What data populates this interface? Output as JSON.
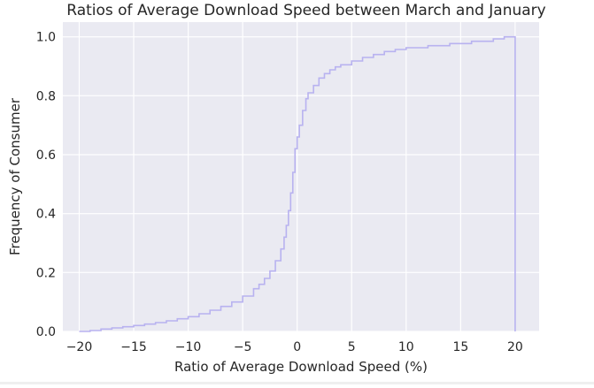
{
  "chart_data": {
    "type": "line",
    "subtype": "step-cdf",
    "title": "Ratios of Average Download Speed between March and January",
    "xlabel": "Ratio of Average Download Speed (%)",
    "ylabel": "Frequency of Consumer",
    "xlim": [
      -21.5,
      22.2
    ],
    "ylim": [
      0,
      1.05
    ],
    "xticks": [
      -20,
      -15,
      -10,
      -5,
      0,
      5,
      10,
      15,
      20
    ],
    "xtick_labels": [
      "−20",
      "−15",
      "−10",
      "−5",
      "0",
      "5",
      "10",
      "15",
      "20"
    ],
    "yticks": [
      0.0,
      0.2,
      0.4,
      0.6,
      0.8,
      1.0
    ],
    "ytick_labels": [
      "0.0",
      "0.2",
      "0.4",
      "0.6",
      "0.8",
      "1.0"
    ],
    "grid": true,
    "colors": {
      "plot_background": "#eaeaf2",
      "grid": "#ffffff",
      "line": "#b8b2f0"
    },
    "series": [
      {
        "x": [
          -20,
          -19,
          -18,
          -17,
          -16,
          -15,
          -14,
          -13,
          -12,
          -11,
          -10,
          -9,
          -8,
          -7,
          -6,
          -5,
          -4,
          -3.5,
          -3,
          -2.5,
          -2,
          -1.5,
          -1.2,
          -1,
          -0.8,
          -0.6,
          -0.4,
          -0.2,
          0,
          0.2,
          0.5,
          0.8,
          1,
          1.5,
          2,
          2.5,
          3,
          3.5,
          4,
          5,
          6,
          7,
          8,
          9,
          10,
          12,
          14,
          16,
          18,
          19,
          20,
          20
        ],
        "y": [
          0.0,
          0.003,
          0.008,
          0.012,
          0.016,
          0.02,
          0.025,
          0.03,
          0.036,
          0.043,
          0.05,
          0.06,
          0.072,
          0.085,
          0.1,
          0.12,
          0.145,
          0.16,
          0.18,
          0.205,
          0.24,
          0.28,
          0.32,
          0.36,
          0.41,
          0.47,
          0.54,
          0.62,
          0.66,
          0.7,
          0.75,
          0.79,
          0.81,
          0.835,
          0.86,
          0.875,
          0.888,
          0.898,
          0.905,
          0.918,
          0.93,
          0.94,
          0.95,
          0.957,
          0.963,
          0.97,
          0.977,
          0.985,
          0.993,
          1.0,
          1.0,
          0.0
        ]
      }
    ]
  }
}
